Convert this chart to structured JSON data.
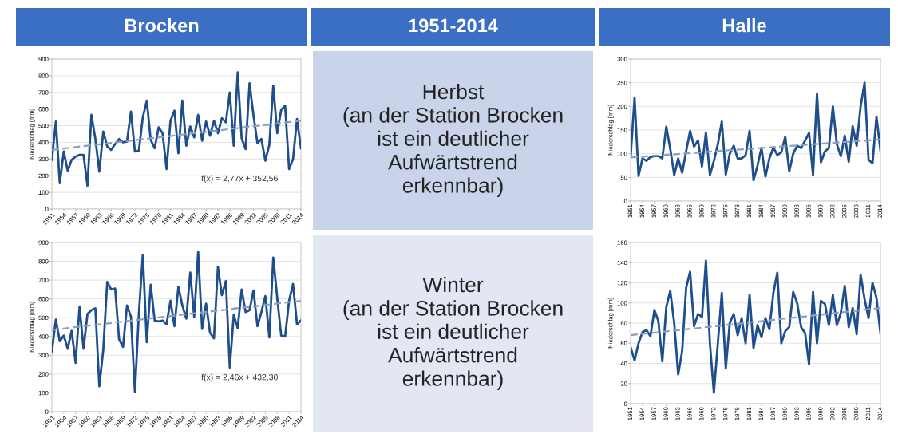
{
  "chart_data": [
    {
      "type": "line",
      "title": "Brocken",
      "ylabel": "Niederschlag [mm]",
      "grid": "y",
      "x": [
        1951,
        1952,
        1953,
        1954,
        1955,
        1956,
        1957,
        1958,
        1959,
        1960,
        1961,
        1962,
        1963,
        1964,
        1965,
        1966,
        1967,
        1968,
        1969,
        1970,
        1971,
        1972,
        1973,
        1974,
        1975,
        1976,
        1977,
        1978,
        1979,
        1980,
        1981,
        1982,
        1983,
        1984,
        1985,
        1986,
        1987,
        1988,
        1989,
        1990,
        1991,
        1992,
        1993,
        1994,
        1995,
        1996,
        1997,
        1998,
        1999,
        2000,
        2001,
        2002,
        2003,
        2004,
        2005,
        2006,
        2007,
        2008,
        2009,
        2010,
        2011,
        2012,
        2013,
        2014
      ],
      "xlim": [
        1951,
        2014
      ],
      "xticks": [
        1951,
        1954,
        1957,
        1960,
        1963,
        1966,
        1969,
        1972,
        1975,
        1978,
        1981,
        1984,
        1987,
        1990,
        1993,
        1996,
        1999,
        2002,
        2005,
        2008,
        2011,
        2014
      ],
      "ylim": [
        0,
        900
      ],
      "yticks": [
        0,
        100,
        200,
        300,
        400,
        500,
        600,
        700,
        800,
        900
      ],
      "series": [
        {
          "color": "#1f4e8c",
          "values": [
            295,
            525,
            155,
            345,
            230,
            295,
            315,
            325,
            325,
            140,
            565,
            420,
            225,
            465,
            375,
            355,
            390,
            420,
            400,
            405,
            585,
            345,
            350,
            550,
            650,
            415,
            365,
            490,
            455,
            240,
            530,
            590,
            335,
            650,
            380,
            495,
            430,
            565,
            410,
            525,
            440,
            530,
            455,
            545,
            520,
            700,
            380,
            820,
            425,
            360,
            755,
            560,
            395,
            420,
            290,
            385,
            740,
            455,
            595,
            620,
            240,
            300,
            540,
            365
          ]
        },
        {
          "type": "line",
          "color": "#8a9fbf",
          "line_style": "dashed",
          "x": [
            1951,
            1982,
            2014
          ],
          "values": [
            355,
            441,
            530
          ]
        }
      ],
      "annotations": [
        "f(x) = 2,77x + 352,56"
      ]
    },
    {
      "type": "other",
      "title": "1951-2014",
      "annotations": [
        "Herbst",
        "(an der Station Brocken ist ein deutlicher Aufwärtstrend erkennbar)"
      ]
    },
    {
      "type": "line",
      "title": "Halle",
      "ylabel": "Niederschlag [mm]",
      "grid": "y",
      "x": [
        1951,
        1952,
        1953,
        1954,
        1955,
        1956,
        1957,
        1958,
        1959,
        1960,
        1961,
        1962,
        1963,
        1964,
        1965,
        1966,
        1967,
        1968,
        1969,
        1970,
        1971,
        1972,
        1973,
        1974,
        1975,
        1976,
        1977,
        1978,
        1979,
        1980,
        1981,
        1982,
        1983,
        1984,
        1985,
        1986,
        1987,
        1988,
        1989,
        1990,
        1991,
        1992,
        1993,
        1994,
        1995,
        1996,
        1997,
        1998,
        1999,
        2000,
        2001,
        2002,
        2003,
        2004,
        2005,
        2006,
        2007,
        2008,
        2009,
        2010,
        2011,
        2012,
        2013,
        2014
      ],
      "xlim": [
        1951,
        2014
      ],
      "xticks": [
        1951,
        1954,
        1957,
        1960,
        1963,
        1966,
        1969,
        1972,
        1975,
        1978,
        1981,
        1984,
        1987,
        1990,
        1993,
        1996,
        1999,
        2002,
        2005,
        2008,
        2011,
        2014
      ],
      "ylim": [
        0,
        300
      ],
      "yticks": [
        0,
        50,
        100,
        150,
        200,
        250,
        300
      ],
      "series": [
        {
          "color": "#1f4e8c",
          "values": [
            93,
            218,
            53,
            90,
            85,
            93,
            95,
            95,
            90,
            157,
            110,
            55,
            90,
            60,
            105,
            148,
            115,
            128,
            73,
            145,
            55,
            85,
            120,
            168,
            56,
            100,
            117,
            90,
            90,
            97,
            148,
            44,
            75,
            112,
            52,
            90,
            113,
            97,
            103,
            136,
            63,
            100,
            117,
            112,
            128,
            144,
            55,
            227,
            82,
            105,
            112,
            200,
            120,
            95,
            138,
            83,
            158,
            117,
            200,
            250,
            87,
            80,
            178,
            107
          ]
        },
        {
          "type": "line",
          "color": "#8a9fbf",
          "line_style": "dashed",
          "x": [
            1951,
            1982,
            2014
          ],
          "values": [
            92,
            111,
            130
          ]
        }
      ]
    },
    {
      "type": "line",
      "ylabel": "Niederschlag [mm]",
      "grid": "y",
      "x": [
        1951,
        1952,
        1953,
        1954,
        1955,
        1956,
        1957,
        1958,
        1959,
        1960,
        1961,
        1962,
        1963,
        1964,
        1965,
        1966,
        1967,
        1968,
        1969,
        1970,
        1971,
        1972,
        1973,
        1974,
        1975,
        1976,
        1977,
        1978,
        1979,
        1980,
        1981,
        1982,
        1983,
        1984,
        1985,
        1986,
        1987,
        1988,
        1989,
        1990,
        1991,
        1992,
        1993,
        1994,
        1995,
        1996,
        1997,
        1998,
        1999,
        2000,
        2001,
        2002,
        2003,
        2004,
        2005,
        2006,
        2007,
        2008,
        2009,
        2010,
        2011,
        2012,
        2013,
        2014
      ],
      "xlim": [
        1951,
        2014
      ],
      "xticks": [
        1951,
        1954,
        1957,
        1960,
        1963,
        1966,
        1969,
        1972,
        1975,
        1978,
        1981,
        1984,
        1987,
        1990,
        1993,
        1996,
        1999,
        2002,
        2005,
        2008,
        2011,
        2014
      ],
      "ylim": [
        0,
        900
      ],
      "yticks": [
        0,
        100,
        200,
        300,
        400,
        500,
        600,
        700,
        800,
        900
      ],
      "series": [
        {
          "color": "#1f4e8c",
          "values": [
            320,
            490,
            375,
            405,
            335,
            430,
            260,
            560,
            335,
            520,
            540,
            550,
            135,
            330,
            690,
            650,
            655,
            385,
            345,
            565,
            505,
            105,
            520,
            835,
            370,
            675,
            485,
            480,
            485,
            465,
            590,
            455,
            665,
            565,
            495,
            740,
            505,
            850,
            440,
            575,
            420,
            390,
            770,
            620,
            695,
            235,
            515,
            445,
            650,
            530,
            540,
            645,
            455,
            530,
            615,
            395,
            820,
            605,
            405,
            400,
            590,
            680,
            465,
            485
          ]
        },
        {
          "type": "line",
          "color": "#8a9fbf",
          "line_style": "dashed",
          "x": [
            1951,
            1982,
            2014
          ],
          "values": [
            435,
            511,
            590
          ]
        }
      ],
      "annotations": [
        "f(x) = 2,46x + 432,30"
      ]
    },
    {
      "type": "other",
      "annotations": [
        "Winter",
        "(an der Station Brocken ist ein deutlicher Aufwärtstrend erkennbar)"
      ]
    },
    {
      "type": "line",
      "ylabel": "Niederschlag [mm]",
      "grid": "y",
      "x": [
        1951,
        1952,
        1953,
        1954,
        1955,
        1956,
        1957,
        1958,
        1959,
        1960,
        1961,
        1962,
        1963,
        1964,
        1965,
        1966,
        1967,
        1968,
        1969,
        1970,
        1971,
        1972,
        1973,
        1974,
        1975,
        1976,
        1977,
        1978,
        1979,
        1980,
        1981,
        1982,
        1983,
        1984,
        1985,
        1986,
        1987,
        1988,
        1989,
        1990,
        1991,
        1992,
        1993,
        1994,
        1995,
        1996,
        1997,
        1998,
        1999,
        2000,
        2001,
        2002,
        2003,
        2004,
        2005,
        2006,
        2007,
        2008,
        2009,
        2010,
        2011,
        2012,
        2013,
        2014
      ],
      "xlim": [
        1951,
        2014
      ],
      "xticks": [
        1951,
        1954,
        1957,
        1960,
        1963,
        1966,
        1969,
        1972,
        1975,
        1978,
        1981,
        1984,
        1987,
        1990,
        1993,
        1996,
        1999,
        2002,
        2005,
        2008,
        2011,
        2014
      ],
      "ylim": [
        0,
        160
      ],
      "yticks": [
        0,
        20,
        40,
        60,
        80,
        100,
        120,
        140,
        160
      ],
      "series": [
        {
          "color": "#1f4e8c",
          "values": [
            56,
            43,
            60,
            71,
            73,
            67,
            93,
            82,
            42,
            96,
            112,
            80,
            29,
            52,
            115,
            131,
            77,
            89,
            86,
            142,
            60,
            11,
            60,
            110,
            35,
            80,
            89,
            68,
            85,
            60,
            108,
            55,
            78,
            66,
            85,
            74,
            110,
            130,
            60,
            72,
            76,
            111,
            100,
            76,
            70,
            39,
            111,
            60,
            102,
            99,
            78,
            108,
            78,
            90,
            117,
            76,
            95,
            69,
            128,
            104,
            85,
            120,
            105,
            70
          ]
        },
        {
          "type": "line",
          "color": "#8a9fbf",
          "line_style": "dashed",
          "x": [
            1951,
            1982,
            2014
          ],
          "values": [
            68,
            81,
            95
          ]
        }
      ]
    }
  ]
}
